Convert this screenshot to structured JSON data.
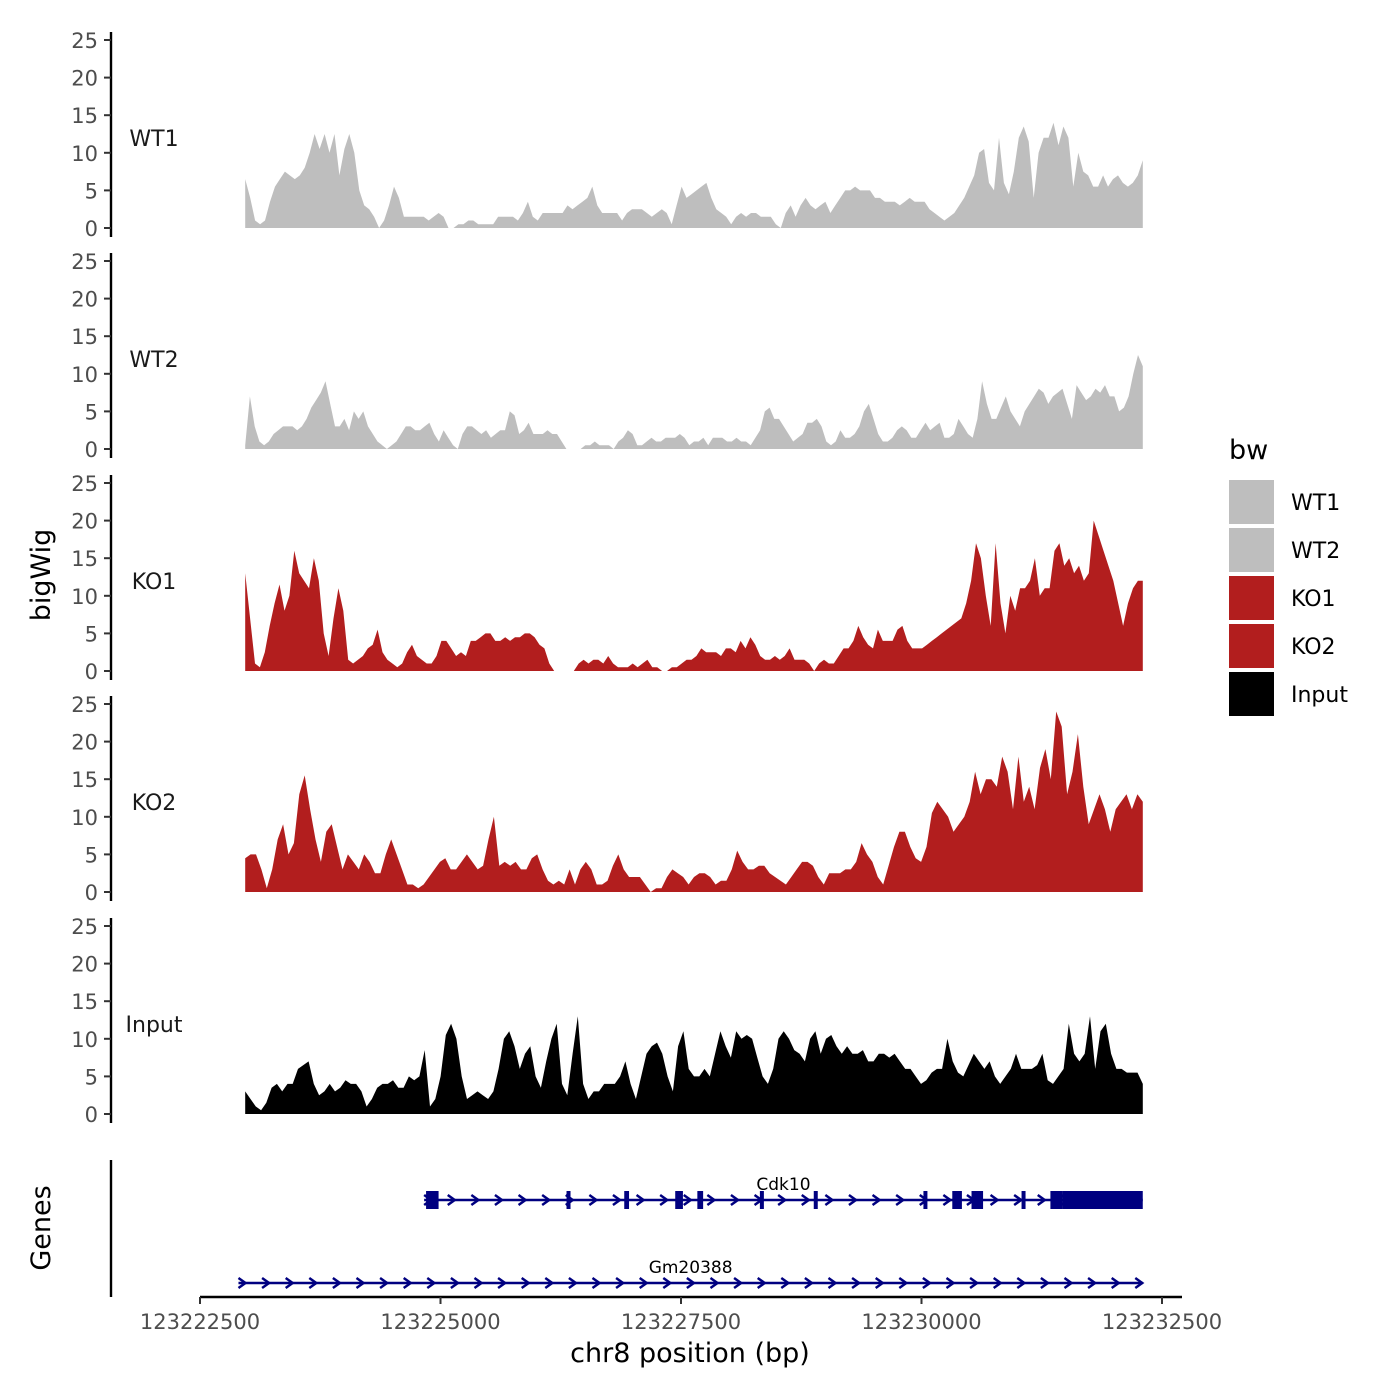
{
  "chart_data": {
    "type": "area",
    "ylabel": "bigWig",
    "xlabel": "chr8 position (bp)",
    "genes_label": "Genes",
    "ylim": [
      0,
      25
    ],
    "y_ticks": [
      "0",
      "5",
      "10",
      "15",
      "20",
      "25"
    ],
    "xlim": [
      123222500,
      123232500
    ],
    "x_ticks": [
      {
        "value": 123222500,
        "label": "123222500"
      },
      {
        "value": 123225000,
        "label": "123225000"
      },
      {
        "value": 123227500,
        "label": "123227500"
      },
      {
        "value": 123230000,
        "label": "123230000"
      },
      {
        "value": 123232500,
        "label": "123232500"
      }
    ],
    "x_range_data": [
      123222970,
      123232300
    ],
    "legend": {
      "title": "bw",
      "entries": [
        {
          "label": "WT1",
          "color": "#bebebe"
        },
        {
          "label": "WT2",
          "color": "#bebebe"
        },
        {
          "label": "KO1",
          "color": "#b21e1e"
        },
        {
          "label": "KO2",
          "color": "#b21e1e"
        },
        {
          "label": "Input",
          "color": "#000000"
        }
      ]
    },
    "series": [
      {
        "name": "WT1",
        "color": "#bebebe",
        "values": [
          6.5,
          4,
          1,
          0.5,
          1,
          3.5,
          5.5,
          6.5,
          7.5,
          7,
          6.5,
          7,
          8,
          10,
          12.5,
          10.5,
          12.5,
          10,
          12.5,
          7,
          10.5,
          12.5,
          10,
          5,
          3,
          2.5,
          1.5,
          0,
          1,
          3,
          5.5,
          4,
          1.5,
          1.5,
          1.5,
          1.5,
          1.5,
          1,
          1.5,
          2,
          1.5,
          0,
          0,
          0.5,
          0.5,
          1,
          1,
          0.5,
          0.5,
          0.5,
          0.5,
          1.5,
          1.5,
          1.5,
          1.5,
          1,
          2,
          3.5,
          1.5,
          1,
          2,
          2,
          2,
          2,
          2,
          3,
          2.5,
          3,
          3.5,
          4,
          5.5,
          3,
          2,
          2,
          2,
          2,
          1,
          2,
          2.5,
          2.5,
          2.5,
          2,
          1.5,
          2,
          2.5,
          2,
          0.5,
          3,
          5.5,
          4,
          4.5,
          5,
          5.5,
          6,
          4,
          2.5,
          2,
          1.5,
          0.5,
          1.5,
          2,
          1.5,
          2,
          2,
          1.5,
          1.5,
          1.5,
          0.5,
          0,
          2,
          3,
          1.5,
          3,
          4,
          3,
          2.5,
          3,
          3.5,
          2,
          3,
          4,
          5,
          5,
          5.5,
          5,
          5,
          5,
          4,
          4,
          3.5,
          3.5,
          3.5,
          3,
          3.5,
          4,
          3.5,
          3.5,
          3.5,
          2.5,
          2,
          1.5,
          1,
          1.5,
          2,
          3,
          4,
          5.5,
          7,
          10,
          10.5,
          6,
          5,
          12,
          6,
          4.5,
          7.5,
          12,
          13.5,
          11.5,
          4,
          10,
          12,
          12,
          14,
          11,
          13.5,
          12,
          5.5,
          10,
          7.5,
          7,
          5.5,
          5.5,
          7,
          5.5,
          6.5,
          7,
          6,
          5.5,
          6,
          7,
          9
        ]
      },
      {
        "name": "WT2",
        "color": "#bebebe",
        "values": [
          0.5,
          7,
          3,
          1,
          0.5,
          1,
          2,
          2.5,
          3,
          3,
          3,
          2.5,
          3,
          4,
          5.5,
          6.5,
          7.5,
          9,
          6,
          3,
          3,
          4,
          2.5,
          5,
          4,
          5,
          3,
          2,
          1,
          0.5,
          0,
          0.5,
          1,
          2,
          3,
          3,
          2.5,
          2.5,
          3,
          3.5,
          2,
          1,
          2.5,
          1.5,
          0.5,
          0,
          2,
          3,
          3,
          2.5,
          2,
          2.5,
          1.5,
          2,
          2.5,
          2.5,
          5,
          4.5,
          2,
          2.5,
          3.5,
          2,
          2,
          2,
          2.5,
          2,
          2,
          1,
          0,
          0,
          0,
          0,
          0.5,
          0.5,
          1,
          0.5,
          0.5,
          0.5,
          0,
          1,
          1.5,
          2.5,
          2,
          0.5,
          0.5,
          1,
          1.5,
          1,
          1,
          1.5,
          1.5,
          1.5,
          2,
          1.5,
          0.5,
          1,
          1,
          1.5,
          0.5,
          1.5,
          1.5,
          1.5,
          1,
          1,
          1.5,
          1,
          1,
          0.5,
          1.5,
          2.5,
          5,
          5.5,
          4,
          4,
          3,
          2,
          1,
          1.5,
          2,
          3.5,
          3.5,
          4,
          3,
          1,
          0.5,
          1,
          2.5,
          1.5,
          1.5,
          2,
          3,
          5,
          6,
          4,
          2,
          1,
          1,
          1.5,
          2.5,
          3,
          2.5,
          1.5,
          1.5,
          2.5,
          3.5,
          2.5,
          3,
          3.5,
          1.5,
          1.5,
          2,
          4,
          3,
          2,
          1.5,
          4,
          9,
          6,
          4,
          4,
          5.5,
          7,
          5,
          4,
          3,
          5,
          6,
          7,
          8,
          7.5,
          6,
          7,
          7.5,
          8,
          6,
          4,
          8.5,
          7.5,
          6.5,
          7,
          8,
          7.5,
          8.5,
          7,
          7,
          5,
          5.5,
          7,
          10,
          12.5,
          11
        ]
      },
      {
        "name": "KO1",
        "color": "#b21e1e",
        "values": [
          13,
          7,
          1,
          0.5,
          2.5,
          6,
          9,
          11.5,
          8,
          10,
          16,
          13,
          12,
          11,
          15,
          12,
          5,
          2,
          7,
          11,
          8,
          1.5,
          1,
          1.5,
          2,
          3,
          3.5,
          5.5,
          2.5,
          1.5,
          1,
          0.5,
          1,
          2.5,
          3.5,
          2,
          1.5,
          1,
          1,
          2,
          4,
          4,
          3,
          2,
          2.5,
          2,
          4,
          4,
          4.5,
          5,
          5,
          4,
          4,
          4.5,
          4,
          4.5,
          4.5,
          5,
          5,
          4.5,
          3.5,
          3,
          1,
          0,
          0,
          0,
          0,
          0,
          1,
          1.5,
          1,
          1.5,
          1.5,
          1,
          2,
          1,
          0.5,
          0.5,
          0.5,
          1,
          0.5,
          1,
          1.5,
          0.5,
          0.5,
          0,
          0,
          0.5,
          0.5,
          1,
          1.5,
          1.5,
          2,
          3,
          2.5,
          2.5,
          2.5,
          2,
          3,
          3,
          2.5,
          4,
          3,
          4.5,
          3.5,
          2,
          1.5,
          1.5,
          2,
          1.5,
          2,
          3,
          1.5,
          1.5,
          1.5,
          1,
          0,
          1,
          1.5,
          1,
          1,
          2,
          3,
          3,
          4,
          6,
          4.5,
          3.5,
          3,
          5.5,
          4,
          4,
          4,
          5.5,
          6,
          4,
          3,
          3,
          3,
          3.5,
          4,
          4.5,
          5,
          5.5,
          6,
          6.5,
          7,
          9,
          12,
          17,
          15,
          10,
          6,
          17,
          9,
          5,
          10,
          8,
          11,
          11,
          12,
          15,
          10,
          11,
          11,
          16,
          17,
          14,
          15,
          13,
          14,
          12,
          13,
          20,
          18,
          16,
          14,
          12,
          9,
          6,
          9,
          11,
          12,
          12
        ]
      },
      {
        "name": "KO2",
        "color": "#b21e1e",
        "values": [
          4.5,
          5,
          5,
          3,
          0.5,
          3,
          7,
          9,
          5,
          6.5,
          13,
          15.5,
          11,
          7,
          4,
          8,
          9,
          6,
          3,
          5,
          4,
          3,
          5,
          4,
          2.5,
          2.5,
          5,
          7,
          5,
          3,
          1,
          1,
          0.5,
          1,
          2,
          3,
          4,
          4.5,
          3,
          3,
          4,
          5,
          4,
          3,
          3.5,
          7,
          10,
          3.5,
          4,
          3.5,
          4,
          3,
          3,
          4.5,
          5,
          3,
          1.5,
          1,
          1.5,
          1,
          3,
          1,
          3,
          4,
          3,
          1,
          1,
          1.5,
          3.5,
          5,
          3,
          2,
          2,
          2,
          1,
          0,
          0.5,
          0.5,
          2,
          3,
          2.5,
          2,
          1,
          2,
          2.5,
          2.5,
          2,
          1,
          1.5,
          1.5,
          3,
          5.5,
          4,
          3,
          3,
          3.5,
          3.5,
          2.5,
          2,
          1.5,
          1,
          2,
          3,
          4,
          4,
          3.5,
          2,
          1,
          2.5,
          2.5,
          2.5,
          3,
          3,
          4,
          6.5,
          5,
          4,
          2,
          1,
          3.5,
          6,
          8,
          8,
          6,
          4.5,
          4,
          6,
          10.5,
          12,
          11,
          10,
          8,
          9,
          10,
          12,
          16,
          13,
          15,
          15,
          14,
          18,
          16,
          11,
          18,
          12,
          14,
          11,
          16.5,
          19,
          15,
          24,
          22,
          13,
          16,
          21,
          14,
          9,
          11,
          13,
          11,
          8,
          11,
          12,
          13,
          11,
          13,
          12
        ]
      },
      {
        "name": "Input",
        "color": "#000000",
        "values": [
          3,
          2,
          1,
          0.5,
          1.5,
          3.5,
          4,
          3,
          4,
          4,
          6,
          6.5,
          7,
          4,
          2.5,
          3,
          4,
          3,
          3.5,
          4.5,
          4,
          4,
          3,
          1,
          2,
          3.5,
          4,
          4,
          4.5,
          3.5,
          3.5,
          5,
          4.5,
          5,
          8.5,
          1,
          2,
          5,
          10.5,
          12,
          10,
          5,
          2,
          2.5,
          3,
          2.5,
          2,
          3,
          6,
          10,
          11,
          9,
          6,
          8,
          9,
          5,
          3.5,
          7,
          10,
          12,
          4,
          2.5,
          8,
          13,
          4,
          2,
          3,
          3,
          4,
          4,
          4,
          5,
          7,
          4,
          2,
          5,
          8,
          9,
          9.5,
          8,
          5,
          3,
          9,
          11,
          6,
          5,
          5,
          6,
          5,
          8,
          11,
          9,
          7.5,
          11,
          10,
          10.5,
          10,
          7.5,
          5,
          4,
          6,
          10,
          11,
          10,
          8.5,
          8,
          7,
          10,
          11,
          8,
          10,
          10.5,
          9,
          8,
          9,
          8,
          8,
          8.5,
          7,
          7,
          8,
          8,
          7.5,
          8,
          7,
          6,
          6,
          5,
          4,
          4.5,
          5.5,
          6,
          6,
          10,
          7,
          5.5,
          5,
          6.5,
          8,
          7,
          6,
          7,
          5,
          4,
          5,
          6,
          8,
          6,
          6,
          6,
          6.5,
          8,
          4.5,
          4,
          5,
          6,
          12,
          8,
          7,
          8,
          13,
          6,
          11,
          12,
          8,
          6,
          6,
          5.5,
          5.5,
          5.5,
          4
        ]
      }
    ],
    "genes": [
      {
        "name": "Cdk10",
        "start": 123224830,
        "end": 123232300,
        "exons": [
          [
            123224850,
            123224980
          ],
          [
            123226310,
            123226350
          ],
          [
            123226910,
            123226960
          ],
          [
            123227440,
            123227520
          ],
          [
            123227670,
            123227730
          ],
          [
            123228320,
            123228360
          ],
          [
            123228880,
            123228920
          ],
          [
            123230020,
            123230060
          ],
          [
            123230320,
            123230420
          ],
          [
            123230520,
            123230640
          ],
          [
            123231040,
            123231080
          ],
          [
            123231340,
            123231470
          ],
          [
            123231470,
            123232300
          ]
        ]
      },
      {
        "name": "Gm20388",
        "start": 123222900,
        "end": 123232300,
        "exons": []
      }
    ]
  }
}
